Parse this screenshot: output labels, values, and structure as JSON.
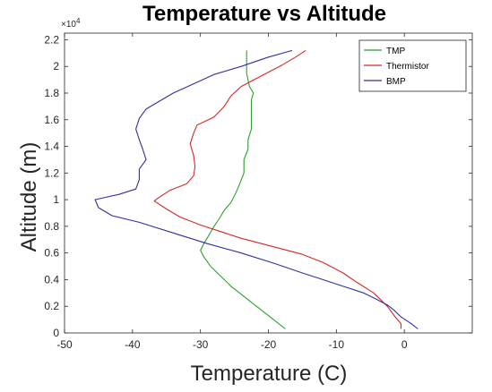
{
  "chart_data": {
    "type": "line",
    "title": "Temperature vs Altitude",
    "xlabel": "Temperature (C)",
    "ylabel": "Altitude (m)",
    "y_exponent_label": "×10",
    "y_exponent_power": "4",
    "xlim": [
      -50,
      10
    ],
    "ylim": [
      0,
      22500
    ],
    "x_ticks": [
      -50,
      -40,
      -30,
      -20,
      -10,
      0
    ],
    "x_tick_labels": [
      "-50",
      "-40",
      "-30",
      "-20",
      "-10",
      "0"
    ],
    "y_ticks": [
      0,
      2000,
      4000,
      6000,
      8000,
      10000,
      12000,
      14000,
      16000,
      18000,
      20000,
      22000
    ],
    "y_tick_labels": [
      "0",
      "0.2",
      "0.4",
      "0.6",
      "0.8",
      "1",
      "1.2",
      "1.4",
      "1.6",
      "1.8",
      "2",
      "2.2"
    ],
    "grid": false,
    "legend_position": "top-right",
    "series": [
      {
        "name": "TMP",
        "color": "#2ca02c",
        "points": [
          [
            -17.5,
            300
          ],
          [
            -18.5,
            700
          ],
          [
            -19.5,
            1100
          ],
          [
            -20.5,
            1500
          ],
          [
            -21.5,
            1900
          ],
          [
            -22.5,
            2300
          ],
          [
            -23.5,
            2700
          ],
          [
            -24.5,
            3100
          ],
          [
            -25.5,
            3500
          ],
          [
            -26.5,
            4000
          ],
          [
            -27.5,
            4500
          ],
          [
            -28.5,
            5000
          ],
          [
            -29.5,
            5700
          ],
          [
            -30.0,
            6200
          ],
          [
            -29.5,
            6700
          ],
          [
            -28.8,
            7300
          ],
          [
            -28.0,
            8000
          ],
          [
            -27.2,
            8600
          ],
          [
            -26.5,
            9200
          ],
          [
            -25.5,
            9800
          ],
          [
            -24.8,
            10500
          ],
          [
            -24.2,
            11200
          ],
          [
            -23.6,
            12000
          ],
          [
            -23.6,
            13000
          ],
          [
            -23.0,
            13800
          ],
          [
            -23.0,
            14500
          ],
          [
            -22.5,
            15300
          ],
          [
            -22.5,
            16500
          ],
          [
            -22.5,
            17500
          ],
          [
            -22.2,
            18000
          ],
          [
            -22.8,
            18500
          ],
          [
            -23.2,
            19500
          ],
          [
            -23.2,
            21200
          ]
        ]
      },
      {
        "name": "Thermistor",
        "color": "#d62728",
        "points": [
          [
            -0.5,
            300
          ],
          [
            -0.5,
            700
          ],
          [
            -1.5,
            1300
          ],
          [
            -2.5,
            2000
          ],
          [
            -4.5,
            3000
          ],
          [
            -7.0,
            3800
          ],
          [
            -9.0,
            4500
          ],
          [
            -12.0,
            5300
          ],
          [
            -15.0,
            5900
          ],
          [
            -18.0,
            6300
          ],
          [
            -21.0,
            6700
          ],
          [
            -24.0,
            7100
          ],
          [
            -27.0,
            7600
          ],
          [
            -30.0,
            8100
          ],
          [
            -33.0,
            8700
          ],
          [
            -35.0,
            9300
          ],
          [
            -36.8,
            9900
          ],
          [
            -36.0,
            10200
          ],
          [
            -34.5,
            10700
          ],
          [
            -32.0,
            11200
          ],
          [
            -31.0,
            11800
          ],
          [
            -30.8,
            12500
          ],
          [
            -31.0,
            13300
          ],
          [
            -31.5,
            14200
          ],
          [
            -31.0,
            15000
          ],
          [
            -30.5,
            15600
          ],
          [
            -28.0,
            16200
          ],
          [
            -26.5,
            17000
          ],
          [
            -25.5,
            17800
          ],
          [
            -24.0,
            18500
          ],
          [
            -21.0,
            19300
          ],
          [
            -18.0,
            20100
          ],
          [
            -16.0,
            20700
          ],
          [
            -14.5,
            21200
          ]
        ]
      },
      {
        "name": "BMP",
        "color": "#3030a0",
        "points": [
          [
            2.0,
            300
          ],
          [
            1.0,
            700
          ],
          [
            -0.5,
            1200
          ],
          [
            -1.5,
            1700
          ],
          [
            -2.5,
            2100
          ],
          [
            -4.0,
            2500
          ],
          [
            -6.0,
            3000
          ],
          [
            -9.0,
            3500
          ],
          [
            -12.0,
            4000
          ],
          [
            -15.0,
            4500
          ],
          [
            -19.0,
            5200
          ],
          [
            -24.0,
            6000
          ],
          [
            -29.0,
            6700
          ],
          [
            -34.0,
            7500
          ],
          [
            -39.0,
            8300
          ],
          [
            -43.0,
            8800
          ],
          [
            -45.0,
            9400
          ],
          [
            -45.5,
            10000
          ],
          [
            -42.0,
            10400
          ],
          [
            -39.5,
            10800
          ],
          [
            -39.0,
            11500
          ],
          [
            -39.0,
            12300
          ],
          [
            -38.0,
            13000
          ],
          [
            -38.5,
            13800
          ],
          [
            -39.0,
            14500
          ],
          [
            -39.5,
            15300
          ],
          [
            -39.0,
            16100
          ],
          [
            -38.0,
            16800
          ],
          [
            -36.0,
            17400
          ],
          [
            -34.0,
            18000
          ],
          [
            -31.0,
            18700
          ],
          [
            -28.0,
            19400
          ],
          [
            -24.0,
            20000
          ],
          [
            -20.0,
            20700
          ],
          [
            -16.5,
            21200
          ]
        ]
      }
    ]
  }
}
